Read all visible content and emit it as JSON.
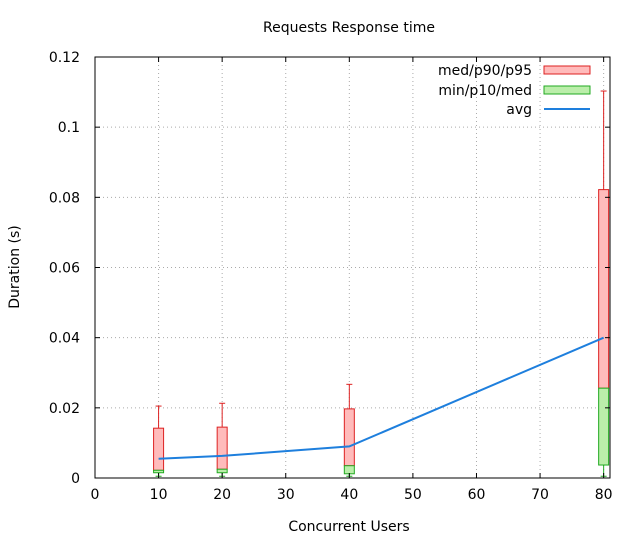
{
  "chart_data": {
    "type": "box",
    "title": "Requests Response time",
    "xlabel": "Concurrent Users",
    "ylabel": "Duration (s)",
    "xlim": [
      0,
      81
    ],
    "ylim": [
      0,
      0.12
    ],
    "xticks": [
      0,
      10,
      20,
      30,
      40,
      50,
      60,
      70,
      80
    ],
    "yticks": [
      0,
      0.02,
      0.04,
      0.06,
      0.08,
      0.1,
      0.12
    ],
    "ytick_labels": [
      "0",
      "0.02",
      "0.04",
      "0.06",
      "0.08",
      "0.1",
      "0.12"
    ],
    "grid": true,
    "legend_position": "top-right",
    "legend": [
      {
        "key": "upper",
        "label": "med/p90/p95"
      },
      {
        "key": "lower",
        "label": "min/p10/med"
      },
      {
        "key": "avg",
        "label": "avg"
      }
    ],
    "series": [
      {
        "x": 10,
        "min": 0.0005,
        "p10": 0.0015,
        "med": 0.0022,
        "p90": 0.0142,
        "p95": 0.0205,
        "avg": 0.0055
      },
      {
        "x": 20,
        "min": 0.0005,
        "p10": 0.0015,
        "med": 0.0025,
        "p90": 0.0145,
        "p95": 0.0213,
        "avg": 0.0063
      },
      {
        "x": 40,
        "min": 0.0005,
        "p10": 0.0012,
        "med": 0.0035,
        "p90": 0.0197,
        "p95": 0.0267,
        "avg": 0.009
      },
      {
        "x": 80,
        "min": 0.0005,
        "p10": 0.0037,
        "med": 0.0256,
        "p90": 0.0822,
        "p95": 0.1103,
        "avg": 0.04
      }
    ],
    "colors": {
      "upper_fill": "#ffbbbb",
      "upper_stroke": "#dd2222",
      "lower_fill": "#bbeeaa",
      "lower_stroke": "#22aa22",
      "avg_line": "#1e7fdd",
      "grid": "#aaaaaa",
      "axis": "#000000"
    }
  }
}
